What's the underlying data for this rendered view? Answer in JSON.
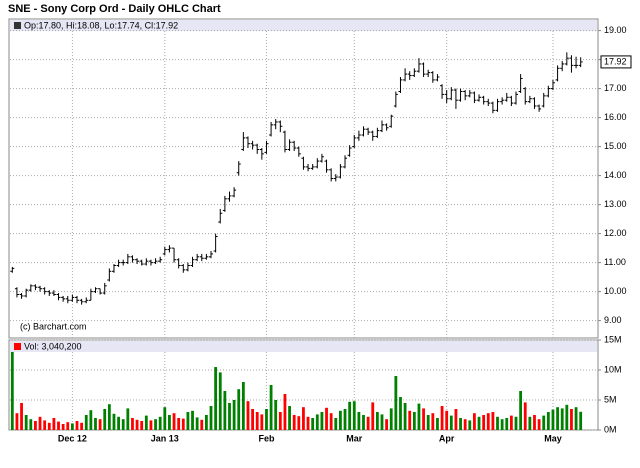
{
  "chart_data": [
    {
      "type": "ohlc",
      "title": "SNE - Sony Corp Ord - Daily OHLC Chart",
      "legend": "Op:17.80, Hi:18.08, Lo:17.74, Cl:17.92",
      "credit": "(c) Barchart.com",
      "color": "#000000",
      "legend_color": "#333333",
      "ylim": [
        8.4,
        19.4
      ],
      "grid": true,
      "yticks": [
        {
          "value": 9,
          "label": "9.00"
        },
        {
          "value": 10,
          "label": "10.00"
        },
        {
          "value": 11,
          "label": "11.00"
        },
        {
          "value": 12,
          "label": "12.00"
        },
        {
          "value": 13,
          "label": "13.00"
        },
        {
          "value": 14,
          "label": "14.00"
        },
        {
          "value": 15,
          "label": "15.00"
        },
        {
          "value": 16,
          "label": "16.00"
        },
        {
          "value": 17,
          "label": "17.00"
        },
        {
          "value": 18,
          "label": "18.00"
        },
        {
          "value": 19,
          "label": "19.00"
        }
      ],
      "ohlc": [
        [
          10.7,
          10.85,
          10.65,
          10.8
        ],
        [
          10.1,
          10.15,
          9.8,
          9.9
        ],
        [
          9.9,
          9.95,
          9.75,
          9.85
        ],
        [
          9.85,
          10.1,
          9.8,
          10.05
        ],
        [
          10.05,
          10.25,
          10.0,
          10.2
        ],
        [
          10.2,
          10.25,
          10.05,
          10.15
        ],
        [
          10.15,
          10.2,
          10.0,
          10.1
        ],
        [
          10.1,
          10.15,
          9.9,
          10.0
        ],
        [
          10.0,
          10.05,
          9.85,
          9.95
        ],
        [
          9.95,
          10.05,
          9.85,
          9.9
        ],
        [
          9.9,
          9.95,
          9.7,
          9.8
        ],
        [
          9.8,
          9.85,
          9.65,
          9.75
        ],
        [
          9.75,
          9.85,
          9.6,
          9.7
        ],
        [
          9.7,
          9.9,
          9.65,
          9.8
        ],
        [
          9.8,
          9.85,
          9.6,
          9.7
        ],
        [
          9.7,
          9.75,
          9.55,
          9.65
        ],
        [
          9.65,
          9.8,
          9.6,
          9.7
        ],
        [
          9.7,
          10.1,
          9.7,
          10.0
        ],
        [
          10.0,
          10.15,
          9.95,
          10.1
        ],
        [
          10.1,
          10.1,
          9.9,
          9.95
        ],
        [
          9.95,
          10.3,
          9.9,
          10.2
        ],
        [
          10.4,
          10.8,
          10.35,
          10.7
        ],
        [
          10.7,
          10.95,
          10.65,
          10.9
        ],
        [
          10.9,
          11.1,
          10.85,
          11.0
        ],
        [
          11.0,
          11.1,
          10.9,
          11.0
        ],
        [
          11.0,
          11.3,
          10.95,
          11.2
        ],
        [
          11.2,
          11.25,
          11.0,
          11.1
        ],
        [
          11.1,
          11.15,
          10.95,
          11.05
        ],
        [
          11.05,
          11.1,
          10.9,
          10.95
        ],
        [
          10.95,
          11.15,
          10.9,
          11.05
        ],
        [
          11.05,
          11.1,
          10.9,
          11.0
        ],
        [
          11.0,
          11.15,
          10.95,
          11.05
        ],
        [
          11.05,
          11.2,
          11.0,
          11.1
        ],
        [
          11.3,
          11.55,
          11.25,
          11.45
        ],
        [
          11.45,
          11.6,
          11.35,
          11.5
        ],
        [
          11.5,
          11.5,
          11.0,
          11.1
        ],
        [
          11.1,
          11.15,
          10.8,
          10.9
        ],
        [
          10.9,
          10.95,
          10.65,
          10.75
        ],
        [
          10.75,
          11.0,
          10.7,
          10.9
        ],
        [
          10.9,
          11.2,
          10.85,
          11.1
        ],
        [
          11.1,
          11.3,
          11.05,
          11.2
        ],
        [
          11.2,
          11.3,
          11.05,
          11.15
        ],
        [
          11.15,
          11.3,
          11.1,
          11.2
        ],
        [
          11.2,
          11.4,
          11.15,
          11.3
        ],
        [
          11.4,
          12.0,
          11.35,
          11.9
        ],
        [
          12.4,
          12.85,
          12.35,
          12.7
        ],
        [
          12.8,
          13.3,
          12.75,
          13.2
        ],
        [
          13.2,
          13.45,
          13.1,
          13.3
        ],
        [
          13.3,
          13.6,
          13.25,
          13.5
        ],
        [
          14.1,
          14.5,
          14.0,
          14.4
        ],
        [
          14.9,
          15.5,
          14.85,
          15.3
        ],
        [
          15.3,
          15.35,
          14.95,
          15.1
        ],
        [
          15.1,
          15.2,
          14.9,
          15.05
        ],
        [
          15.05,
          15.1,
          14.75,
          14.9
        ],
        [
          14.9,
          14.95,
          14.55,
          14.75
        ],
        [
          14.8,
          15.2,
          14.75,
          15.1
        ],
        [
          15.4,
          15.85,
          15.35,
          15.75
        ],
        [
          15.75,
          15.95,
          15.6,
          15.85
        ],
        [
          15.85,
          15.9,
          15.5,
          15.7
        ],
        [
          15.5,
          15.55,
          14.8,
          14.9
        ],
        [
          14.9,
          15.25,
          14.85,
          15.15
        ],
        [
          15.15,
          15.2,
          14.85,
          14.95
        ],
        [
          14.95,
          15.0,
          14.65,
          14.75
        ],
        [
          14.6,
          14.65,
          14.2,
          14.3
        ],
        [
          14.3,
          14.4,
          14.15,
          14.25
        ],
        [
          14.25,
          14.4,
          14.2,
          14.3
        ],
        [
          14.3,
          14.6,
          14.25,
          14.5
        ],
        [
          14.5,
          14.75,
          14.45,
          14.65
        ],
        [
          14.5,
          14.55,
          14.1,
          14.2
        ],
        [
          14.2,
          14.25,
          13.8,
          13.9
        ],
        [
          13.9,
          14.05,
          13.8,
          13.95
        ],
        [
          13.95,
          14.4,
          13.9,
          14.3
        ],
        [
          14.3,
          14.7,
          14.25,
          14.6
        ],
        [
          14.7,
          15.05,
          14.65,
          14.95
        ],
        [
          15.0,
          15.4,
          14.95,
          15.3
        ],
        [
          15.3,
          15.55,
          15.2,
          15.4
        ],
        [
          15.4,
          15.7,
          15.35,
          15.6
        ],
        [
          15.6,
          15.65,
          15.4,
          15.5
        ],
        [
          15.5,
          15.55,
          15.2,
          15.35
        ],
        [
          15.35,
          15.65,
          15.3,
          15.55
        ],
        [
          15.55,
          15.9,
          15.5,
          15.75
        ],
        [
          15.75,
          15.8,
          15.55,
          15.65
        ],
        [
          15.7,
          16.1,
          15.65,
          16.05
        ],
        [
          16.4,
          16.9,
          16.35,
          16.8
        ],
        [
          16.9,
          17.4,
          16.85,
          17.3
        ],
        [
          17.3,
          17.7,
          17.25,
          17.5
        ],
        [
          17.5,
          17.6,
          17.3,
          17.45
        ],
        [
          17.45,
          17.7,
          17.4,
          17.6
        ],
        [
          17.6,
          18.05,
          17.55,
          17.85
        ],
        [
          17.85,
          17.9,
          17.4,
          17.5
        ],
        [
          17.5,
          17.65,
          17.4,
          17.55
        ],
        [
          17.55,
          17.6,
          17.2,
          17.3
        ],
        [
          17.3,
          17.5,
          17.25,
          17.4
        ],
        [
          17.1,
          17.15,
          16.65,
          16.8
        ],
        [
          16.8,
          16.95,
          16.5,
          16.65
        ],
        [
          16.65,
          17.05,
          16.6,
          16.95
        ],
        [
          16.95,
          17.0,
          16.3,
          16.6
        ],
        [
          16.6,
          17.0,
          16.55,
          16.9
        ],
        [
          16.9,
          16.95,
          16.6,
          16.75
        ],
        [
          16.75,
          16.95,
          16.7,
          16.85
        ],
        [
          16.85,
          16.9,
          16.5,
          16.6
        ],
        [
          16.6,
          16.8,
          16.55,
          16.7
        ],
        [
          16.7,
          16.75,
          16.45,
          16.55
        ],
        [
          16.55,
          16.65,
          16.4,
          16.5
        ],
        [
          16.5,
          16.55,
          16.15,
          16.25
        ],
        [
          16.25,
          16.65,
          16.2,
          16.55
        ],
        [
          16.55,
          16.7,
          16.45,
          16.6
        ],
        [
          16.6,
          16.85,
          16.55,
          16.7
        ],
        [
          16.7,
          16.75,
          16.4,
          16.5
        ],
        [
          16.5,
          16.9,
          16.45,
          16.8
        ],
        [
          16.9,
          17.5,
          16.85,
          17.35
        ],
        [
          17.0,
          17.05,
          16.45,
          16.55
        ],
        [
          16.55,
          16.75,
          16.5,
          16.65
        ],
        [
          16.65,
          16.7,
          16.3,
          16.4
        ],
        [
          16.4,
          16.45,
          16.2,
          16.3
        ],
        [
          16.4,
          16.85,
          16.35,
          16.75
        ],
        [
          16.75,
          17.1,
          16.7,
          17.0
        ],
        [
          17.0,
          17.3,
          16.95,
          17.2
        ],
        [
          17.3,
          17.8,
          17.25,
          17.7
        ],
        [
          17.7,
          17.95,
          17.6,
          17.85
        ],
        [
          17.85,
          18.25,
          17.8,
          18.05
        ],
        [
          18.05,
          18.15,
          17.55,
          17.8
        ],
        [
          17.8,
          18.1,
          17.7,
          17.8
        ],
        [
          17.8,
          18.08,
          17.74,
          17.92
        ]
      ]
    },
    {
      "type": "volume",
      "legend": "Vol: 3,040,200",
      "legend_color": "#ff0000",
      "up_color": "#008000",
      "down_color": "#ff0000",
      "ylim": [
        0,
        15000000
      ],
      "grid": true,
      "yticks": [
        {
          "value": 0,
          "label": "0M"
        },
        {
          "value": 5000000,
          "label": "5M"
        },
        {
          "value": 10000000,
          "label": "10M"
        },
        {
          "value": 15000000,
          "label": "15M"
        }
      ],
      "categories": [
        null,
        null,
        null,
        null,
        null,
        null,
        null,
        null,
        null,
        null,
        null,
        null,
        null,
        "Dec 12",
        null,
        null,
        null,
        null,
        null,
        null,
        null,
        null,
        null,
        null,
        null,
        null,
        null,
        null,
        null,
        null,
        null,
        null,
        null,
        "Jan 13",
        null,
        null,
        null,
        null,
        null,
        null,
        null,
        null,
        null,
        null,
        null,
        null,
        null,
        null,
        null,
        null,
        null,
        null,
        null,
        null,
        null,
        "Feb",
        null,
        null,
        null,
        null,
        null,
        null,
        null,
        null,
        null,
        null,
        null,
        null,
        null,
        null,
        null,
        null,
        null,
        null,
        "Mar",
        null,
        null,
        null,
        null,
        null,
        null,
        null,
        null,
        null,
        null,
        null,
        null,
        null,
        null,
        null,
        null,
        null,
        null,
        null,
        "Apr",
        null,
        null,
        null,
        null,
        null,
        null,
        null,
        null,
        null,
        null,
        null,
        null,
        null,
        null,
        null,
        null,
        null,
        null,
        null,
        null,
        null,
        null,
        "May",
        null,
        null,
        null,
        null,
        null,
        null
      ],
      "values": [
        13000000,
        2800000,
        4500000,
        2500000,
        1800000,
        1500000,
        2200000,
        1600000,
        1200000,
        2000000,
        1400000,
        1000000,
        1300000,
        1100000,
        1500000,
        1200000,
        2500000,
        3300000,
        2000000,
        1800000,
        3500000,
        4300000,
        2700000,
        2200000,
        1800000,
        3600000,
        2000000,
        1700000,
        1500000,
        2400000,
        1600000,
        1800000,
        2200000,
        3800000,
        2500000,
        2800000,
        2000000,
        1900000,
        3000000,
        3200000,
        2100000,
        1700000,
        2500000,
        4000000,
        10500000,
        9600000,
        6500000,
        4500000,
        5000000,
        6800000,
        8000000,
        4800000,
        3500000,
        3000000,
        2600000,
        3500000,
        7500000,
        5000000,
        3000000,
        6000000,
        4000000,
        2500000,
        2300000,
        3800000,
        2200000,
        2000000,
        2600000,
        3000000,
        3700000,
        2800000,
        2000000,
        3200000,
        3500000,
        4700000,
        4800000,
        3000000,
        2500000,
        2200000,
        4600000,
        3000000,
        2600000,
        1800000,
        3600000,
        9000000,
        5500000,
        4500000,
        3200000,
        3000000,
        4400000,
        3600000,
        2500000,
        2800000,
        2000000,
        4000000,
        3200000,
        2400000,
        3500000,
        2000000,
        1800000,
        1600000,
        2800000,
        2200000,
        2500000,
        2800000,
        3000000,
        2200000,
        1800000,
        2000000,
        2400000,
        2200000,
        6500000,
        4600000,
        2200000,
        2500000,
        1800000,
        2400000,
        3000000,
        3400000,
        3800000,
        3600000,
        4200000,
        3500000,
        3800000,
        3040200
      ]
    }
  ]
}
